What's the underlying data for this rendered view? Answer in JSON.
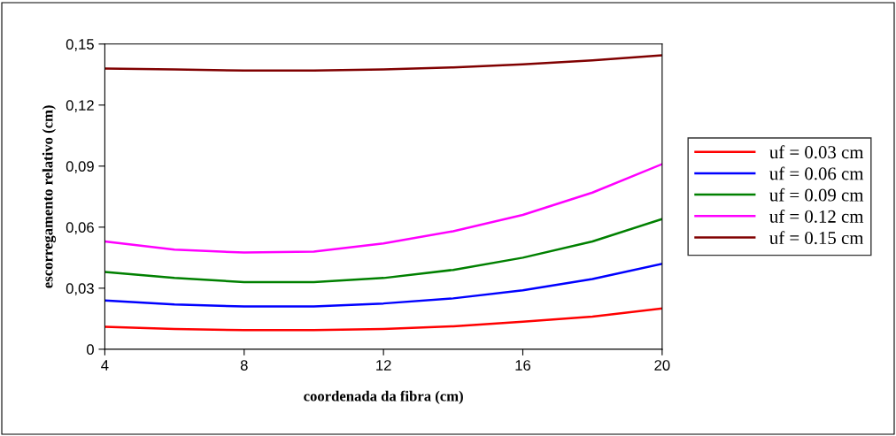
{
  "chart_data": {
    "type": "line",
    "xlabel": "coordenada da fibra (cm)",
    "ylabel": "escorregamento relativo (cm)",
    "x": [
      4,
      6,
      8,
      10,
      12,
      14,
      16,
      18,
      20
    ],
    "series": [
      {
        "name": "uf = 0.03 cm",
        "color": "#ff0000",
        "values": [
          0.011,
          0.01,
          0.0094,
          0.0094,
          0.01,
          0.0113,
          0.0135,
          0.016,
          0.02
        ]
      },
      {
        "name": "uf = 0.06 cm",
        "color": "#0000ff",
        "values": [
          0.024,
          0.022,
          0.021,
          0.021,
          0.0225,
          0.025,
          0.029,
          0.0345,
          0.042
        ]
      },
      {
        "name": "uf = 0.09 cm",
        "color": "#008000",
        "values": [
          0.038,
          0.035,
          0.033,
          0.033,
          0.035,
          0.039,
          0.045,
          0.053,
          0.064
        ]
      },
      {
        "name": "uf = 0.12 cm",
        "color": "#ff00ff",
        "values": [
          0.053,
          0.049,
          0.0475,
          0.048,
          0.052,
          0.058,
          0.066,
          0.077,
          0.091
        ]
      },
      {
        "name": "uf = 0.15 cm",
        "color": "#800000",
        "values": [
          0.138,
          0.1375,
          0.137,
          0.137,
          0.1375,
          0.1385,
          0.14,
          0.142,
          0.1445
        ]
      }
    ],
    "xlim": [
      4,
      20
    ],
    "xticks": [
      4,
      8,
      12,
      16,
      20
    ],
    "ylim": [
      0,
      0.15
    ],
    "yticks": [
      {
        "value": 0,
        "label": "0"
      },
      {
        "value": 0.03,
        "label": "0,03"
      },
      {
        "value": 0.06,
        "label": "0,06"
      },
      {
        "value": 0.09,
        "label": "0,09"
      },
      {
        "value": 0.12,
        "label": "0,12"
      },
      {
        "value": 0.15,
        "label": "0,15"
      }
    ],
    "grid": false,
    "legend": "right",
    "marker": "none",
    "line_style": "solid"
  }
}
